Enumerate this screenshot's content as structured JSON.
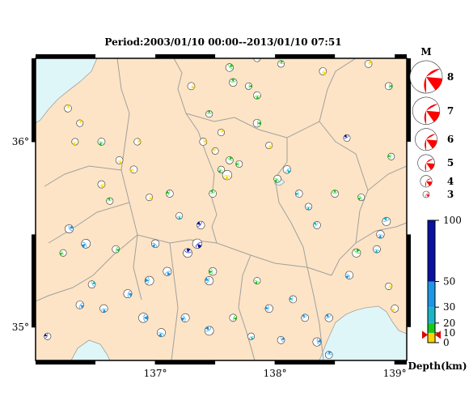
{
  "title": "Period:2003/01/10 00:00--2013/01/10 07:51",
  "map": {
    "lon_range": [
      136.0,
      139.1
    ],
    "lat_range": [
      34.82,
      36.45
    ],
    "lon_ticks": [
      {
        "value": 137,
        "label": "137°"
      },
      {
        "value": 138,
        "label": "138°"
      },
      {
        "value": 139,
        "label": "139°"
      }
    ],
    "lat_ticks": [
      {
        "value": 36,
        "label": "36°"
      },
      {
        "value": 35,
        "label": "35°"
      }
    ],
    "land_color": "#fde4c6",
    "sea_color": "#dff6f8",
    "border_color": "#a0a0a0"
  },
  "magnitude_legend": {
    "title": "M",
    "items": [
      {
        "label": "8",
        "mag": 8
      },
      {
        "label": "7",
        "mag": 7
      },
      {
        "label": "6",
        "mag": 6
      },
      {
        "label": "5",
        "mag": 5
      },
      {
        "label": "4",
        "mag": 4
      },
      {
        "label": "3",
        "mag": 3
      }
    ]
  },
  "depth_scale": {
    "title": "Depth(km)",
    "ticks": [
      {
        "value": 100,
        "label": "100"
      },
      {
        "value": 50,
        "label": "50"
      },
      {
        "value": 30,
        "label": "30"
      },
      {
        "value": 20,
        "label": "20"
      },
      {
        "value": 10,
        "label": "10"
      },
      {
        "value": 0,
        "label": "0"
      }
    ],
    "bands": [
      {
        "from": 0,
        "to": 10,
        "color": "#ffd300"
      },
      {
        "from": 10,
        "to": 20,
        "color": "#19c819"
      },
      {
        "from": 20,
        "to": 30,
        "color": "#1eb4c8"
      },
      {
        "from": 30,
        "to": 50,
        "color": "#1e96e6"
      },
      {
        "from": 50,
        "to": 100,
        "color": "#0a10a0"
      }
    ],
    "marker_depth": 8
  },
  "chart_data": {
    "type": "scatter",
    "title": "Period:2003/01/10 00:00--2013/01/10 07:51",
    "xlabel": "",
    "ylabel": "",
    "xlim": [
      136.0,
      139.1
    ],
    "ylim": [
      34.82,
      36.45
    ],
    "series": [
      {
        "name": "",
        "fields": [
          "lon",
          "lat",
          "mag",
          "depth_km"
        ],
        "points": [
          [
            136.27,
            36.18,
            3.4,
            8
          ],
          [
            136.33,
            36.0,
            3.3,
            5
          ],
          [
            136.28,
            35.53,
            3.6,
            35
          ],
          [
            136.23,
            35.4,
            3.3,
            15
          ],
          [
            136.1,
            34.95,
            3.3,
            60
          ],
          [
            136.47,
            35.23,
            3.4,
            25
          ],
          [
            136.37,
            35.12,
            3.5,
            35
          ],
          [
            136.57,
            35.1,
            3.5,
            35
          ],
          [
            136.77,
            35.18,
            3.6,
            35
          ],
          [
            136.67,
            35.42,
            3.4,
            15
          ],
          [
            136.55,
            35.77,
            3.4,
            5
          ],
          [
            136.62,
            35.68,
            3.3,
            10
          ],
          [
            136.42,
            35.45,
            3.7,
            30
          ],
          [
            136.37,
            36.1,
            3.3,
            5
          ],
          [
            136.55,
            36.0,
            3.4,
            15
          ],
          [
            136.85,
            36.0,
            3.3,
            5
          ],
          [
            136.82,
            35.85,
            3.4,
            5
          ],
          [
            136.95,
            35.7,
            3.3,
            5
          ],
          [
            137.12,
            35.72,
            3.4,
            15
          ],
          [
            137.0,
            35.45,
            3.5,
            35
          ],
          [
            137.1,
            35.3,
            3.6,
            40
          ],
          [
            136.95,
            35.25,
            3.7,
            40
          ],
          [
            136.9,
            35.05,
            3.8,
            40
          ],
          [
            137.05,
            34.97,
            3.6,
            40
          ],
          [
            137.25,
            35.05,
            3.6,
            30
          ],
          [
            137.45,
            34.98,
            3.7,
            40
          ],
          [
            137.35,
            35.45,
            3.8,
            80
          ],
          [
            137.27,
            35.4,
            3.7,
            70
          ],
          [
            137.48,
            35.3,
            3.5,
            10
          ],
          [
            137.45,
            35.25,
            3.6,
            45
          ],
          [
            137.38,
            35.55,
            3.5,
            65
          ],
          [
            137.2,
            35.6,
            3.3,
            20
          ],
          [
            137.48,
            35.72,
            3.4,
            15
          ],
          [
            137.55,
            35.85,
            3.3,
            10
          ],
          [
            137.62,
            35.9,
            3.4,
            10
          ],
          [
            137.7,
            35.88,
            3.3,
            10
          ],
          [
            137.6,
            35.82,
            3.8,
            6
          ],
          [
            137.5,
            35.95,
            3.3,
            5
          ],
          [
            137.4,
            36.0,
            3.4,
            5
          ],
          [
            137.45,
            36.15,
            3.3,
            10
          ],
          [
            137.55,
            36.05,
            3.3,
            5
          ],
          [
            137.3,
            36.3,
            3.4,
            5
          ],
          [
            137.65,
            36.32,
            3.5,
            12
          ],
          [
            137.62,
            36.4,
            3.5,
            10
          ],
          [
            137.78,
            36.3,
            3.3,
            15
          ],
          [
            137.85,
            36.25,
            3.4,
            15
          ],
          [
            137.85,
            36.1,
            3.5,
            10
          ],
          [
            137.95,
            35.98,
            3.3,
            5
          ],
          [
            138.02,
            35.8,
            3.4,
            15
          ],
          [
            138.1,
            35.85,
            3.5,
            25
          ],
          [
            138.2,
            35.72,
            3.4,
            25
          ],
          [
            138.28,
            35.65,
            3.3,
            20
          ],
          [
            138.35,
            35.55,
            3.4,
            25
          ],
          [
            138.5,
            35.72,
            3.4,
            10
          ],
          [
            138.72,
            35.7,
            3.3,
            10
          ],
          [
            138.97,
            35.92,
            3.3,
            15
          ],
          [
            138.6,
            36.02,
            3.3,
            80
          ],
          [
            138.78,
            36.42,
            3.4,
            5
          ],
          [
            138.95,
            36.3,
            3.4,
            10
          ],
          [
            138.4,
            36.38,
            3.4,
            5
          ],
          [
            138.05,
            36.42,
            3.3,
            10
          ],
          [
            137.85,
            36.45,
            3.3,
            5
          ],
          [
            138.93,
            35.57,
            3.6,
            25
          ],
          [
            138.88,
            35.5,
            3.5,
            30
          ],
          [
            138.85,
            35.42,
            3.4,
            20
          ],
          [
            138.68,
            35.4,
            3.6,
            15
          ],
          [
            138.62,
            35.28,
            3.5,
            35
          ],
          [
            138.95,
            35.22,
            3.3,
            5
          ],
          [
            139.0,
            35.1,
            3.4,
            5
          ],
          [
            138.15,
            35.15,
            3.4,
            20
          ],
          [
            137.95,
            35.1,
            3.5,
            30
          ],
          [
            138.25,
            35.05,
            3.4,
            30
          ],
          [
            138.45,
            35.05,
            3.5,
            30
          ],
          [
            138.35,
            34.92,
            3.6,
            35
          ],
          [
            138.45,
            34.85,
            3.4,
            30
          ],
          [
            138.05,
            34.93,
            3.4,
            30
          ],
          [
            137.8,
            34.95,
            3.3,
            25
          ],
          [
            137.65,
            35.05,
            3.4,
            10
          ],
          [
            137.85,
            35.25,
            3.3,
            15
          ],
          [
            136.7,
            35.9,
            3.4,
            5
          ]
        ]
      }
    ]
  }
}
